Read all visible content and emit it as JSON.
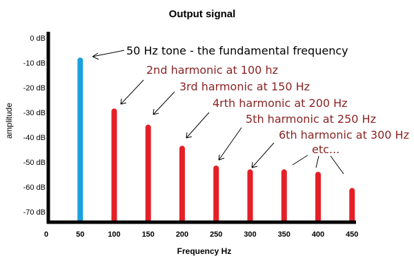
{
  "chart_data": {
    "type": "bar",
    "title": "Output signal",
    "xlabel": "Frequency Hz",
    "ylabel": "amplitude",
    "x_ticks": [
      "0",
      "50",
      "100",
      "150",
      "200",
      "250",
      "300",
      "350",
      "400",
      "450"
    ],
    "y_ticks": [
      "0 dB",
      "-10 dB",
      "-20 dB",
      "-30 dB",
      "-40 dB",
      "-50 dB",
      "-60 dB",
      "-70 dB"
    ],
    "ylim": [
      -74,
      0
    ],
    "xlim": [
      0,
      460
    ],
    "grid": false,
    "x": [
      50,
      100,
      150,
      200,
      250,
      300,
      350,
      400,
      450
    ],
    "values": [
      -9,
      -29.5,
      -36,
      -44.5,
      -52.5,
      -54,
      -54,
      -55,
      -61.5
    ],
    "colors": {
      "fundamental": "#1ba1dc",
      "harmonic": "#e41f26",
      "annotation_harmonic": "#8b2323",
      "annotation_fundamental": "#000000"
    },
    "annotations": [
      "50 Hz tone  - the fundamental frequency",
      "2nd harmonic at 100 hz",
      "3rd harmonic at 150 Hz",
      "4rth harmonic at 200 Hz",
      "5th harmonic at 250 Hz",
      "6th harmonic at 300 Hz",
      "etc..."
    ]
  }
}
